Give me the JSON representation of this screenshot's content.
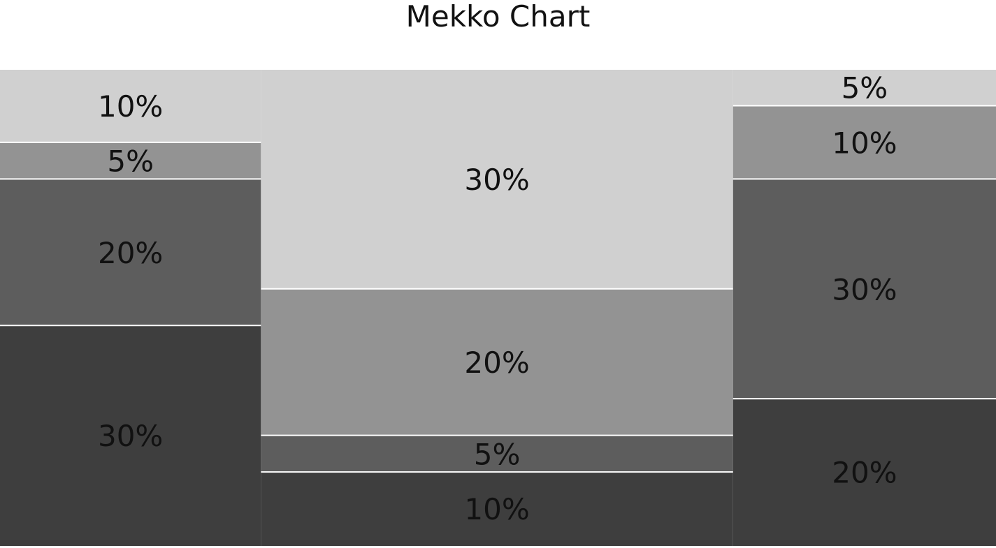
{
  "chart_data": {
    "type": "mekko",
    "title": "Mekko Chart",
    "categories": [
      "",
      "",
      ""
    ],
    "widths": [
      26.2,
      47.4,
      26.4
    ],
    "series": [
      {
        "values": [
          10,
          30,
          5
        ],
        "labels": [
          "10%",
          "30%",
          "5%"
        ],
        "color": "#d0d0d0"
      },
      {
        "values": [
          5,
          20,
          10
        ],
        "labels": [
          "5%",
          "20%",
          "10%"
        ],
        "color": "#939393"
      },
      {
        "values": [
          20,
          5,
          30
        ],
        "labels": [
          "20%",
          "5%",
          "30%"
        ],
        "color": "#5d5d5d"
      },
      {
        "values": [
          30,
          10,
          20
        ],
        "labels": [
          "30%",
          "10%",
          "20%"
        ],
        "color": "#3e3e3e"
      }
    ],
    "label_color": "#111111",
    "legend": "none",
    "grid": false
  }
}
